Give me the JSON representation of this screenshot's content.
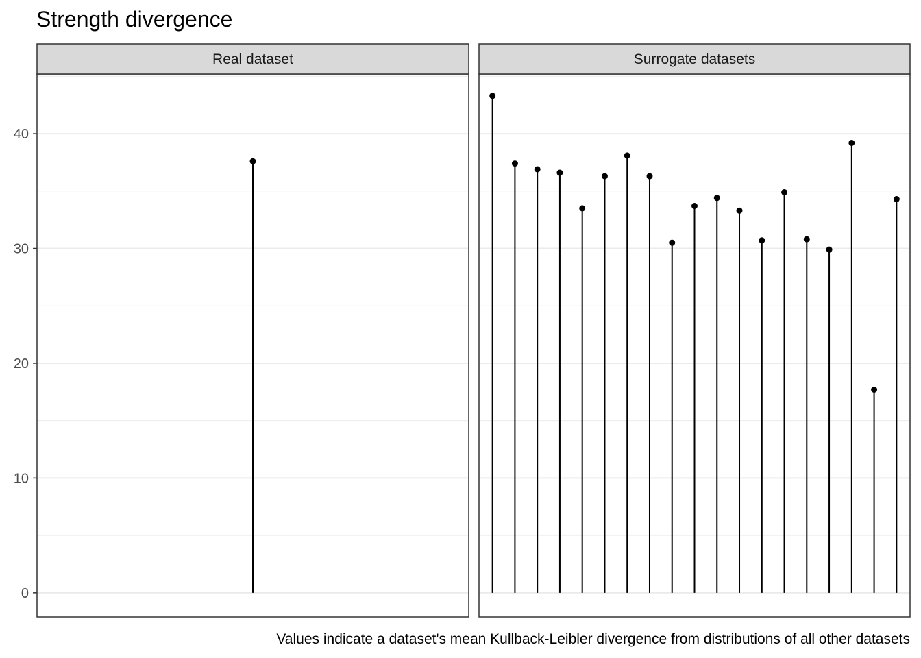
{
  "chart_data": {
    "type": "lollipop",
    "title": "Strength divergence",
    "caption": "Values indicate a dataset's mean Kullback-Leibler divergence from distributions of all other datasets",
    "xlabel": "",
    "ylabel": "",
    "ylim": [
      -2.1,
      45.2
    ],
    "y_ticks": [
      "0",
      "10",
      "20",
      "30",
      "40"
    ],
    "grid": true,
    "colors": {
      "mark": "#000000",
      "strip_fill": "#d9d9d9",
      "panel_border": "#333333",
      "grid": "#ebebeb"
    },
    "facets": [
      {
        "label": "Real dataset",
        "values": [
          37.6
        ]
      },
      {
        "label": "Surrogate datasets",
        "values": [
          43.3,
          37.4,
          36.9,
          36.6,
          33.5,
          36.3,
          38.1,
          36.3,
          30.5,
          33.7,
          34.4,
          33.3,
          30.7,
          34.9,
          30.8,
          29.9,
          39.2,
          17.7,
          34.3
        ]
      }
    ]
  }
}
